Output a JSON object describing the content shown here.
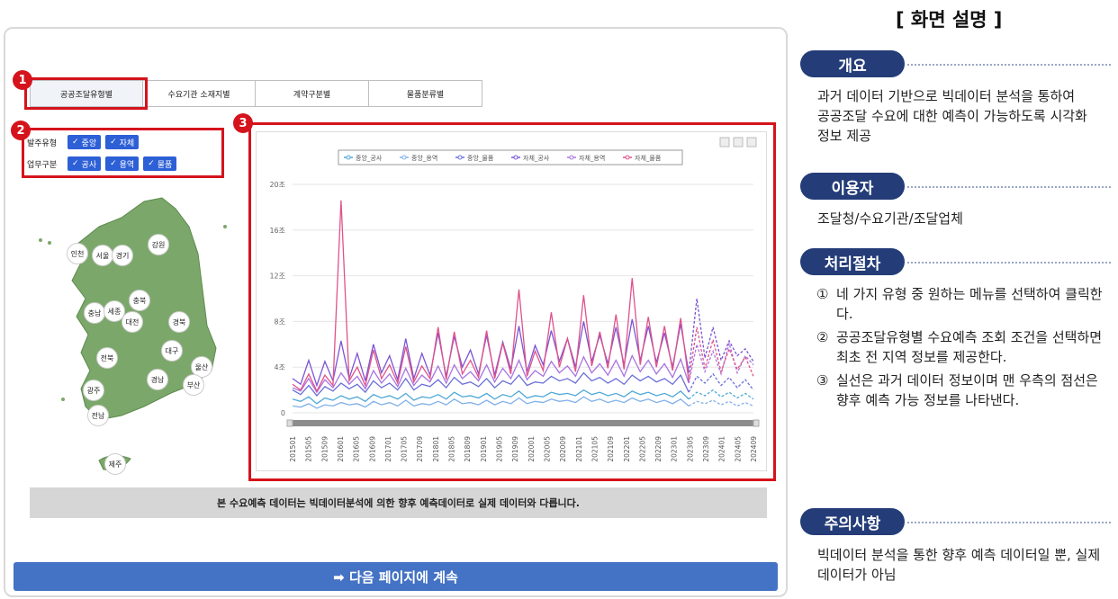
{
  "tabs": [
    "공공조달유형별",
    "수요기관 소재지별",
    "계약구분별",
    "물품분류별"
  ],
  "markers": [
    "1",
    "2",
    "3"
  ],
  "filters": {
    "order_type": {
      "label": "발주유형",
      "options": [
        "중앙",
        "자체"
      ]
    },
    "work_type": {
      "label": "업무구분",
      "options": [
        "공사",
        "용역",
        "물품"
      ]
    }
  },
  "regions": [
    "인천",
    "서울",
    "경기",
    "강원",
    "충북",
    "충남",
    "세종",
    "대전",
    "경북",
    "전북",
    "대구",
    "울산",
    "경남",
    "광주",
    "부산",
    "전남",
    "제주"
  ],
  "chart_data": {
    "type": "line",
    "series": [
      {
        "name": "중앙_공사",
        "color": "#4fa8d8",
        "values": [
          1.2,
          1.0,
          1.4,
          0.8,
          1.3,
          1.1,
          1.5,
          1.2,
          1.4,
          1.0,
          1.6,
          1.3,
          1.5,
          1.2,
          1.7,
          1.1,
          1.4,
          1.3,
          1.6,
          1.2,
          1.8,
          1.4,
          1.5,
          1.3,
          1.7,
          1.2,
          1.6,
          1.4,
          1.9,
          1.3,
          1.5,
          1.4,
          1.8,
          1.6,
          1.7,
          1.5,
          2.0,
          1.6,
          1.8,
          1.5,
          1.7,
          1.4,
          1.9,
          1.6,
          1.8,
          1.5,
          1.7,
          1.4,
          1.9,
          1.2
        ]
      },
      {
        "name": "중앙_용역",
        "color": "#7fb0e8",
        "values": [
          0.6,
          0.5,
          0.8,
          0.4,
          0.7,
          0.6,
          0.9,
          0.7,
          0.8,
          0.5,
          1.0,
          0.7,
          0.9,
          0.6,
          1.1,
          0.6,
          0.8,
          0.7,
          1.0,
          0.7,
          1.2,
          0.8,
          0.9,
          0.7,
          1.1,
          0.7,
          1.0,
          0.8,
          1.3,
          0.8,
          1.0,
          0.9,
          1.2,
          1.0,
          1.1,
          0.9,
          1.4,
          1.0,
          1.2,
          0.9,
          1.1,
          0.9,
          1.3,
          1.0,
          1.2,
          0.9,
          1.1,
          0.8,
          1.2,
          0.6
        ]
      },
      {
        "name": "중앙_물품",
        "color": "#6a6fd8",
        "values": [
          2.0,
          1.6,
          2.4,
          1.5,
          2.3,
          1.9,
          2.6,
          2.1,
          2.5,
          1.8,
          2.8,
          2.2,
          2.6,
          2.0,
          3.0,
          2.0,
          2.5,
          2.3,
          2.9,
          2.2,
          3.1,
          2.5,
          2.7,
          2.3,
          3.0,
          2.2,
          2.8,
          2.5,
          3.3,
          2.4,
          2.7,
          2.6,
          3.2,
          2.8,
          3.0,
          2.6,
          3.5,
          2.8,
          3.1,
          2.6,
          3.0,
          2.5,
          3.3,
          2.8,
          3.2,
          2.7,
          3.0,
          2.5,
          3.3,
          1.8
        ]
      },
      {
        "name": "자체_공사",
        "color": "#7b54d4",
        "values": [
          3.0,
          2.5,
          4.6,
          2.4,
          4.5,
          2.8,
          6.3,
          3.0,
          5.2,
          2.8,
          6.0,
          3.5,
          5.0,
          2.9,
          6.5,
          3.0,
          5.2,
          3.3,
          7.0,
          3.2,
          6.7,
          4.0,
          5.5,
          3.4,
          6.8,
          3.3,
          6.2,
          3.8,
          7.6,
          3.6,
          5.9,
          4.2,
          7.2,
          4.5,
          6.5,
          4.0,
          8.0,
          4.5,
          6.8,
          4.3,
          7.5,
          4.2,
          8.2,
          4.6,
          7.6,
          4.4,
          7.0,
          4.0,
          7.8,
          3.5
        ]
      },
      {
        "name": "자체_용역",
        "color": "#a874e0",
        "values": [
          2.2,
          1.9,
          3.0,
          1.8,
          2.9,
          2.2,
          3.5,
          2.5,
          3.2,
          2.1,
          3.7,
          2.6,
          3.4,
          2.3,
          3.9,
          2.4,
          3.3,
          2.7,
          4.1,
          2.6,
          4.2,
          3.0,
          3.6,
          2.8,
          4.2,
          2.7,
          3.9,
          3.0,
          4.6,
          2.9,
          3.7,
          3.2,
          4.5,
          3.5,
          4.1,
          3.2,
          4.9,
          3.5,
          4.3,
          3.3,
          4.6,
          3.2,
          5.0,
          3.6,
          4.6,
          3.4,
          4.3,
          3.1,
          4.7,
          2.6
        ]
      },
      {
        "name": "자체_물품",
        "color": "#e0528a",
        "values": [
          2.5,
          2.0,
          3.4,
          1.9,
          3.3,
          2.4,
          18.6,
          2.8,
          4.0,
          2.4,
          5.5,
          3.0,
          4.2,
          2.6,
          5.8,
          2.7,
          4.1,
          3.0,
          7.5,
          2.9,
          7.1,
          3.4,
          4.6,
          3.1,
          7.2,
          3.0,
          6.1,
          3.4,
          10.8,
          3.2,
          5.4,
          3.7,
          8.8,
          4.0,
          6.5,
          3.6,
          10.3,
          4.1,
          7.1,
          3.9,
          8.6,
          3.8,
          11.8,
          4.2,
          8.4,
          4.0,
          7.6,
          3.7,
          8.3,
          2.8
        ]
      }
    ],
    "forecast_series": [
      {
        "name": "중앙_공사",
        "color": "#4fa8d8",
        "values": [
          1.2,
          1.8,
          1.5,
          2.0,
          1.4,
          1.8,
          1.3,
          1.7,
          1.2
        ]
      },
      {
        "name": "중앙_용역",
        "color": "#7fb0e8",
        "values": [
          0.6,
          1.0,
          0.8,
          1.1,
          0.7,
          1.0,
          0.6,
          0.9,
          0.6
        ]
      },
      {
        "name": "중앙_물품",
        "color": "#6a6fd8",
        "values": [
          1.8,
          3.2,
          2.6,
          3.4,
          2.4,
          3.1,
          2.2,
          2.9,
          2.0
        ]
      },
      {
        "name": "자체_공사",
        "color": "#7b54d4",
        "values": [
          3.5,
          10.0,
          4.8,
          7.5,
          4.6,
          6.3,
          5.0,
          5.6,
          4.5
        ]
      },
      {
        "name": "자체_용역",
        "color": "#a874e0",
        "values": [
          2.6,
          6.0,
          3.6,
          5.4,
          3.4,
          6.1,
          3.5,
          5.0,
          4.2
        ]
      },
      {
        "name": "자체_물품",
        "color": "#e0528a",
        "values": [
          2.8,
          7.5,
          3.9,
          6.4,
          3.6,
          5.6,
          3.8,
          4.9,
          3.2
        ]
      }
    ],
    "x_ticks": [
      "201501",
      "201505",
      "201509",
      "201601",
      "201605",
      "201609",
      "201701",
      "201705",
      "201709",
      "201801",
      "201805",
      "201809",
      "201901",
      "201905",
      "201909",
      "202001",
      "202005",
      "202009",
      "202101",
      "202105",
      "202109",
      "202201",
      "202205",
      "202209",
      "202301",
      "202305",
      "202309",
      "202401",
      "202405",
      "202409"
    ],
    "y_ticks": [
      "20조",
      "16조",
      "12조",
      "8조",
      "4조",
      "0"
    ],
    "ylim": [
      0,
      20
    ],
    "title": "",
    "xlabel": "",
    "ylabel": "",
    "legend_position": "top-center",
    "grid": true
  },
  "banner_text": "본 수요예측 데이터는 빅데이터분석에 의한 향후 예측데이터로 실제 데이터와 다릅니다.",
  "next_button": "➡ 다음 페이지에 계속",
  "side": {
    "title": "[ 화면 설명 ]",
    "overview_label": "개요",
    "overview_text": "과거 데이터 기반으로 빅데이터 분석을 통하여 공공조달 수요에 대한 예측이 가능하도록 시각화 정보 제공",
    "users_label": "이용자",
    "users_text": "조달청/수요기관/조달업체",
    "procedure_label": "처리절차",
    "procedure_steps": [
      {
        "num": "①",
        "text": "네 가지 유형 중 원하는 메뉴를 선택하여 클릭한다."
      },
      {
        "num": "②",
        "text": "공공조달유형별 수요예측 조회 조건을 선택하면 최초 전 지역 정보를 제공한다."
      },
      {
        "num": "③",
        "text": "실선은 과거 데이터 정보이며 맨 우측의 점선은 향후 예측 가능 정보를 나타낸다."
      }
    ],
    "caution_label": "주의사항",
    "caution_text": "빅데이터 분석을 통한 향후 예측 데이터일 뿐, 실제 데이터가 아님"
  }
}
